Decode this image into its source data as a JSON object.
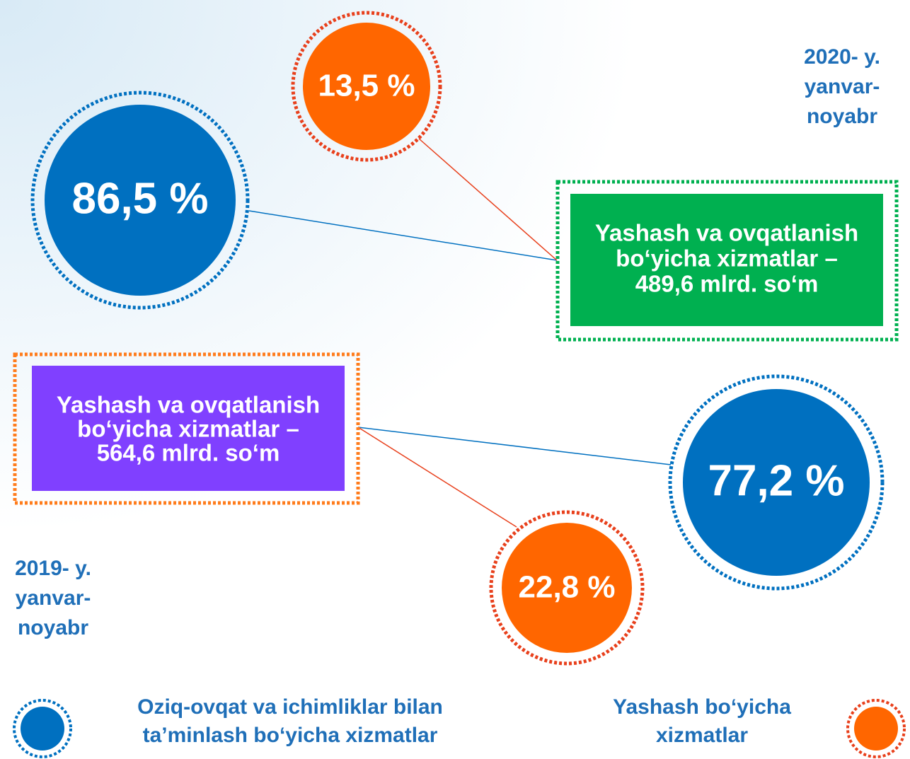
{
  "circles": [
    {
      "label": "13,5 %"
    },
    {
      "label": "86,5 %"
    },
    {
      "label": "77,2 %"
    },
    {
      "label": "22,8 %"
    }
  ],
  "boxes": [
    {
      "lines": [
        "Yashash va ovqatlanish",
        "bo‘yicha xizmatlar –",
        "489,6 mlrd. so‘m"
      ]
    },
    {
      "lines": [
        "Yashash va ovqatlanish",
        "bo‘yicha xizmatlar –",
        "564,6 mlrd. so‘m"
      ]
    }
  ],
  "periods": [
    {
      "lines": [
        "2020- y.",
        "yanvar-",
        "noyabr"
      ]
    },
    {
      "lines": [
        "2019- y.",
        "yanvar-",
        "noyabr"
      ]
    }
  ],
  "legend": [
    {
      "lines": [
        "Oziq-ovqat va ichimliklar bilan",
        "ta’minlash bo‘yicha xizmatlar"
      ]
    },
    {
      "lines": [
        "Yashash bo‘yicha",
        "xizmatlar"
      ]
    }
  ]
}
